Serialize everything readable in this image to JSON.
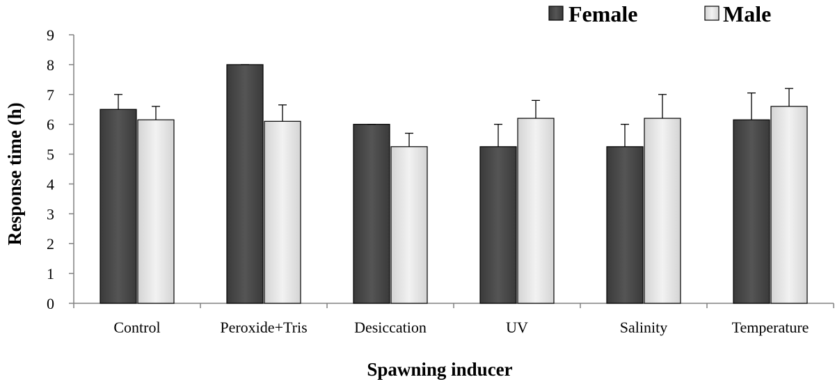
{
  "chart_data": {
    "type": "bar",
    "title": "",
    "xlabel": "Spawning inducer",
    "ylabel": "Response time (h)",
    "ylim": [
      0,
      9
    ],
    "yticks": [
      0,
      1,
      2,
      3,
      4,
      5,
      6,
      7,
      8,
      9
    ],
    "grid": false,
    "legend_position": "top-right",
    "categories": [
      "Control",
      "Peroxide+Tris",
      "Desiccation",
      "UV",
      "Salinity",
      "Temperature"
    ],
    "series": [
      {
        "name": "Female",
        "color": "#4a4a4a",
        "values": [
          6.5,
          8.0,
          6.0,
          5.25,
          5.25,
          6.15
        ],
        "errors": [
          0.5,
          0.0,
          0.0,
          0.75,
          0.75,
          0.9
        ]
      },
      {
        "name": "Male",
        "color": "#e6e6e6",
        "values": [
          6.15,
          6.1,
          5.25,
          6.2,
          6.2,
          6.6
        ],
        "errors": [
          0.45,
          0.55,
          0.45,
          0.6,
          0.8,
          0.6
        ]
      }
    ]
  }
}
